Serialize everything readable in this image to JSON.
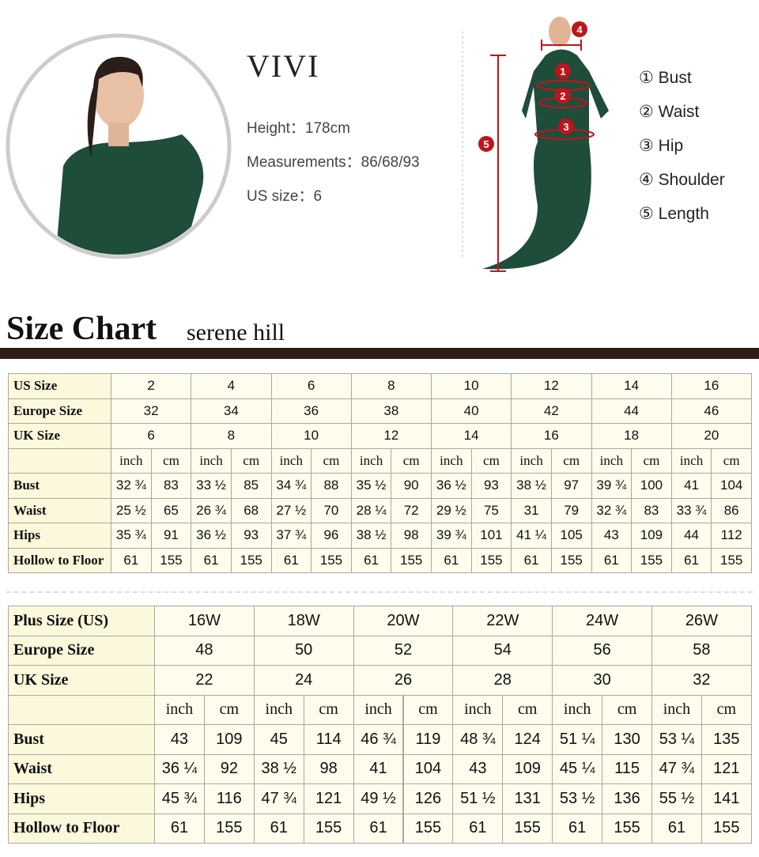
{
  "model": {
    "name": "VIVI",
    "details": [
      "Height：178cm",
      "Measurements：86/68/93",
      "US size：6"
    ]
  },
  "figure_markers": [
    1,
    2,
    3,
    4,
    5
  ],
  "measure_legend": [
    "① Bust",
    "② Waist",
    "③ Hip",
    "④ Shoulder",
    "⑤ Length"
  ],
  "title": "Size Chart",
  "brand": "serene hill",
  "table1": {
    "size_rows": [
      {
        "label": "US Size",
        "values": [
          2,
          4,
          6,
          8,
          10,
          12,
          14,
          16
        ]
      },
      {
        "label": "Europe Size",
        "values": [
          32,
          34,
          36,
          38,
          40,
          42,
          44,
          46
        ]
      },
      {
        "label": "UK Size",
        "values": [
          6,
          8,
          10,
          12,
          14,
          16,
          18,
          20
        ]
      }
    ],
    "unit_row": [
      "inch",
      "cm",
      "inch",
      "cm",
      "inch",
      "cm",
      "inch",
      "cm",
      "inch",
      "cm",
      "inch",
      "cm",
      "inch",
      "cm",
      "inch",
      "cm"
    ],
    "measure_rows": [
      {
        "label": "Bust",
        "values": [
          "32 ¾",
          83,
          "33 ½",
          85,
          "34 ¾",
          88,
          "35 ½",
          90,
          "36 ½",
          93,
          "38 ½",
          97,
          "39 ¾",
          100,
          41,
          104
        ]
      },
      {
        "label": "Waist",
        "values": [
          "25 ½",
          65,
          "26 ¾",
          68,
          "27 ½",
          70,
          "28 ¼",
          72,
          "29 ½",
          75,
          31,
          79,
          "32 ¾",
          83,
          "33 ¾",
          86
        ]
      },
      {
        "label": "Hips",
        "values": [
          "35 ¾",
          91,
          "36 ½",
          93,
          "37 ¾",
          96,
          "38 ½",
          98,
          "39 ¾",
          101,
          "41 ¼",
          105,
          43,
          109,
          44,
          112
        ]
      },
      {
        "label": "Hollow to Floor",
        "values": [
          61,
          155,
          61,
          155,
          61,
          155,
          61,
          155,
          61,
          155,
          61,
          155,
          61,
          155,
          61,
          155
        ]
      }
    ]
  },
  "table2": {
    "size_rows": [
      {
        "label": "Plus Size (US)",
        "values": [
          "16W",
          "18W",
          "20W",
          "22W",
          "24W",
          "26W"
        ]
      },
      {
        "label": "Europe Size",
        "values": [
          48,
          50,
          52,
          54,
          56,
          58
        ]
      },
      {
        "label": "UK Size",
        "values": [
          22,
          24,
          26,
          28,
          30,
          32
        ]
      }
    ],
    "unit_row": [
      "inch",
      "cm",
      "inch",
      "cm",
      "inch",
      "cm",
      "inch",
      "cm",
      "inch",
      "cm",
      "inch",
      "cm"
    ],
    "measure_rows": [
      {
        "label": "Bust",
        "values": [
          43,
          109,
          45,
          114,
          "46 ¾",
          119,
          "48 ¾",
          124,
          "51 ¼",
          130,
          "53 ¼",
          135
        ]
      },
      {
        "label": "Waist",
        "values": [
          "36 ¼",
          92,
          "38 ½",
          98,
          41,
          104,
          43,
          109,
          "45 ¼",
          115,
          "47 ¾",
          121
        ]
      },
      {
        "label": "Hips",
        "values": [
          "45 ¾",
          116,
          "47 ¾",
          121,
          "49 ½",
          126,
          "51 ½",
          131,
          "53 ½",
          136,
          "55 ½",
          141
        ]
      },
      {
        "label": "Hollow to Floor",
        "values": [
          61,
          155,
          61,
          155,
          61,
          155,
          61,
          155,
          61,
          155,
          61,
          155
        ]
      }
    ]
  }
}
